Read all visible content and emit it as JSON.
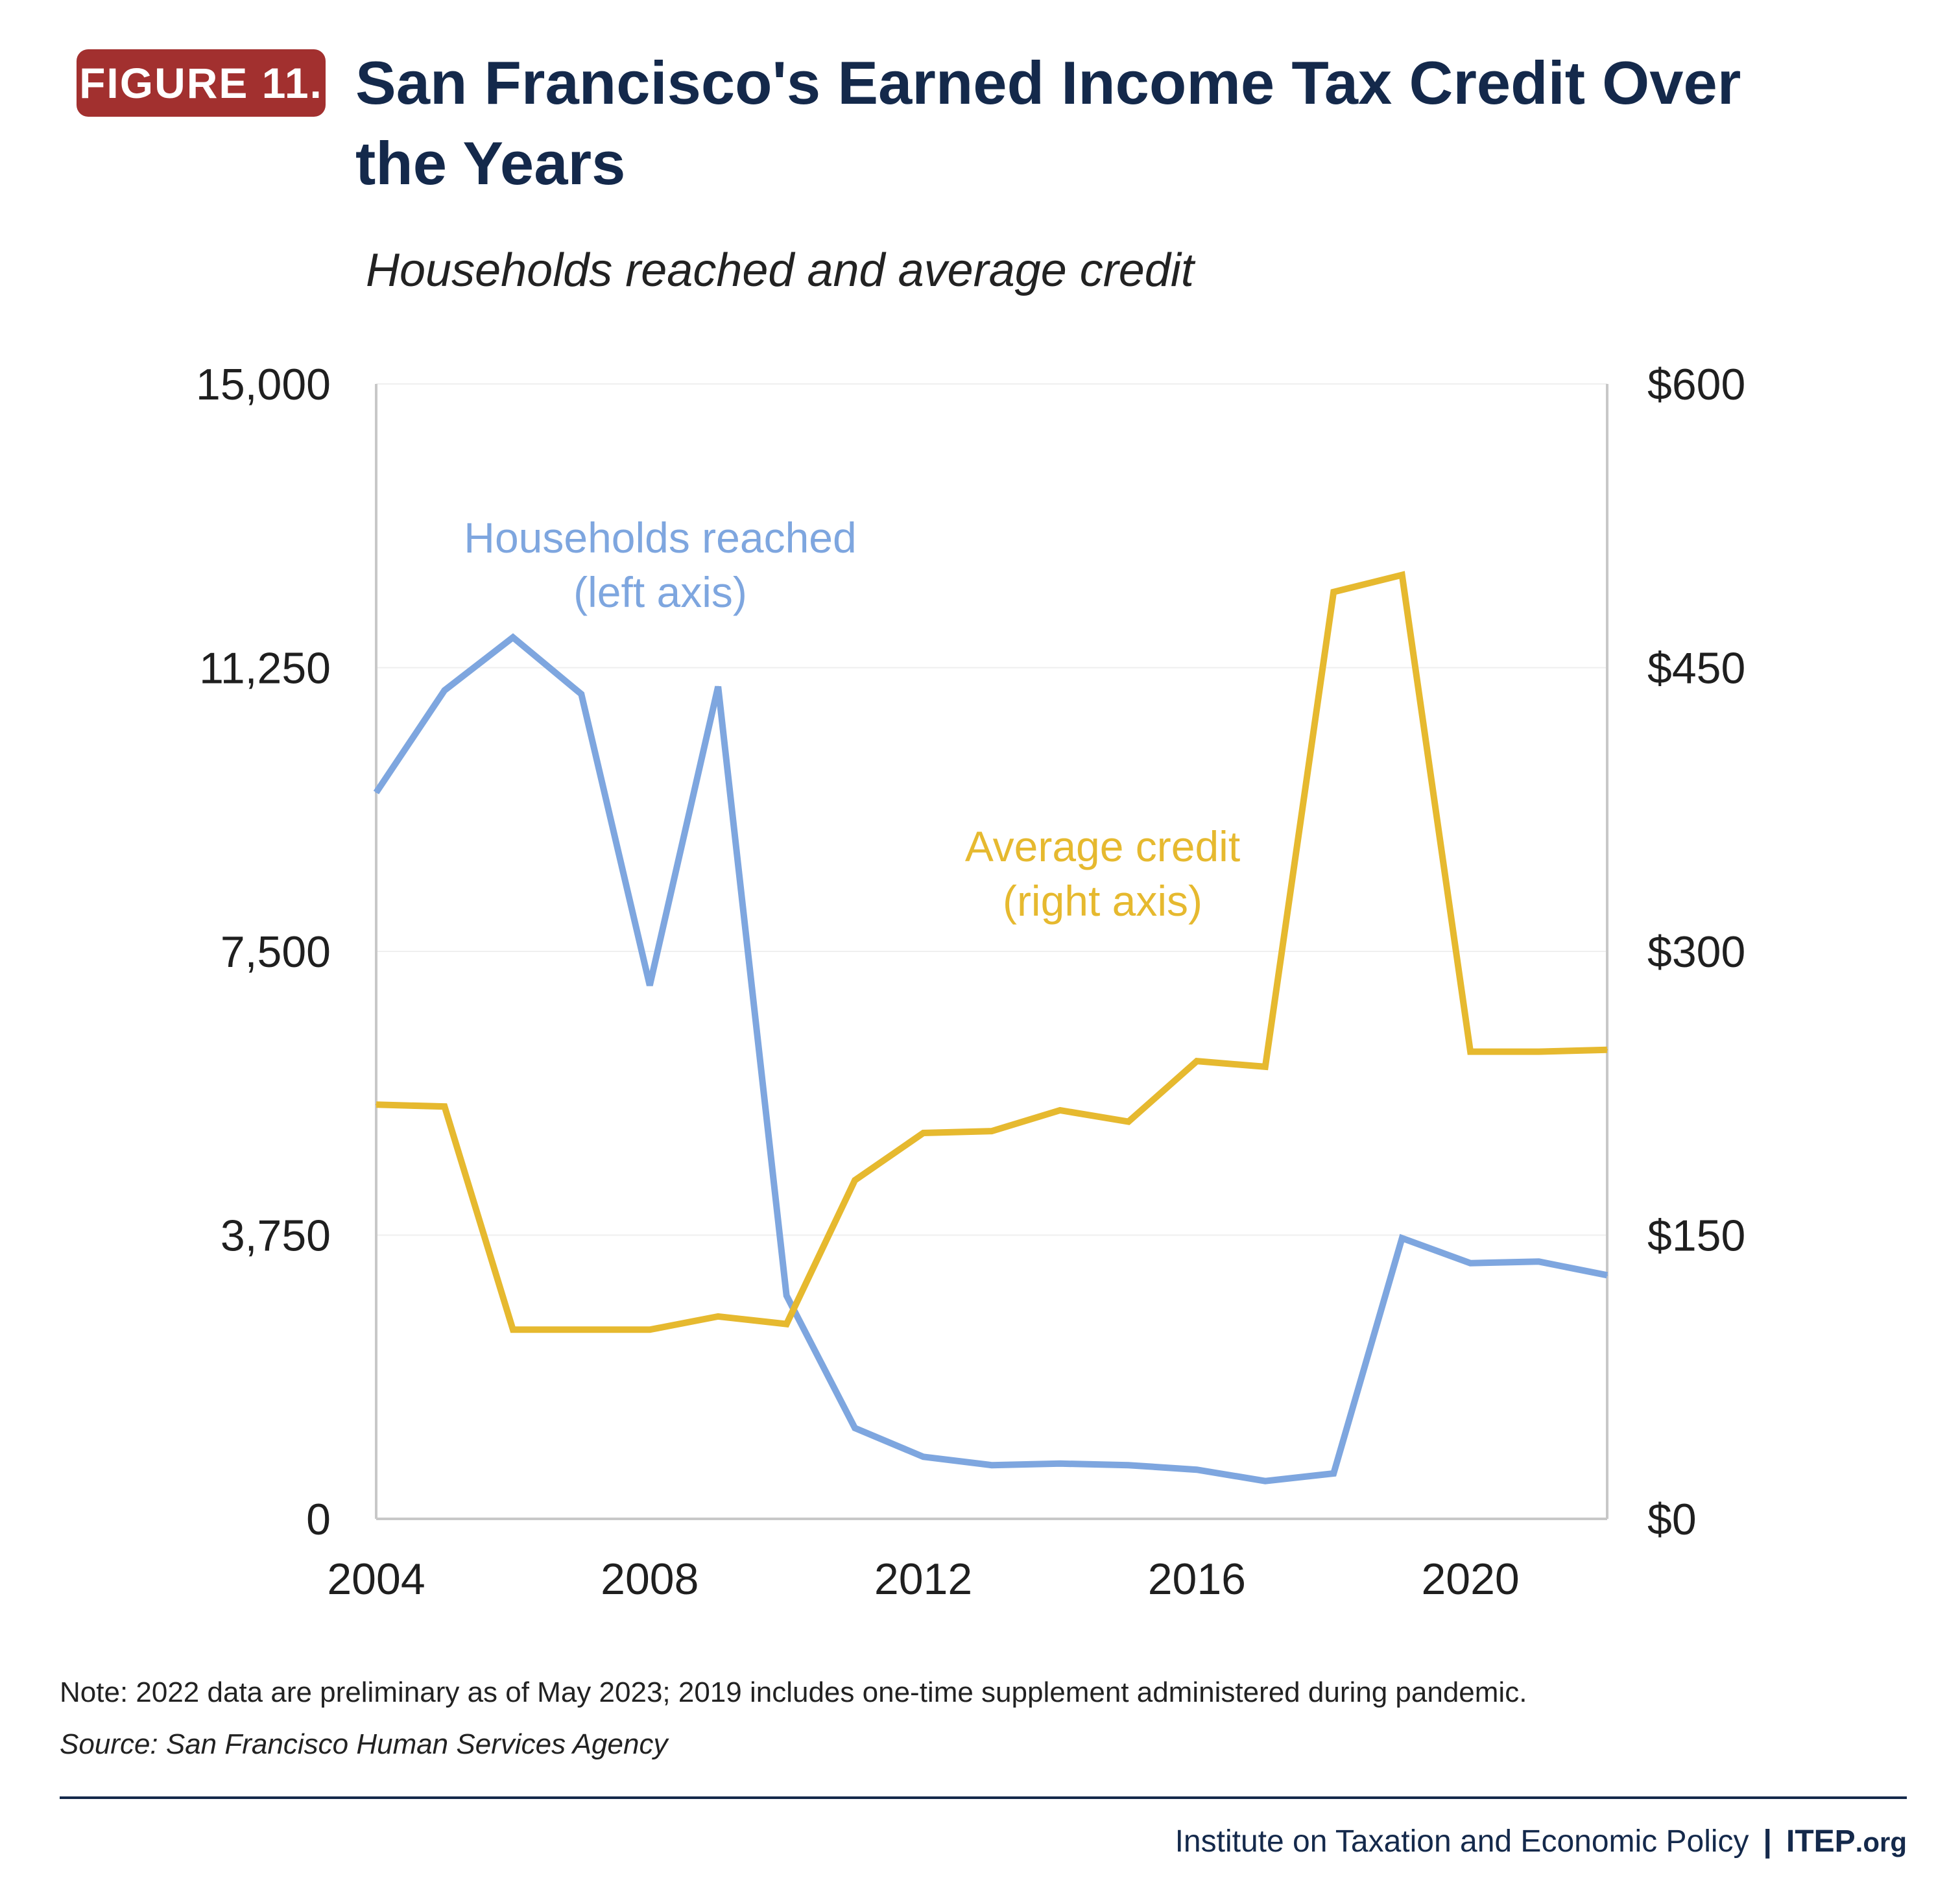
{
  "header": {
    "badge": "FIGURE 11.",
    "title": "San Francisco's Earned Income Tax Credit Over the Years",
    "subtitle": "Households reached and average credit"
  },
  "colors": {
    "badge": "#a2302f",
    "title": "#14294b",
    "households": "#7ea6df",
    "credit": "#e6b92f",
    "axis": "#c8c8c8",
    "grid": "#efefef"
  },
  "chart_data": {
    "type": "line",
    "title": "Households reached and average credit",
    "x": [
      2004,
      2005,
      2006,
      2007,
      2008,
      2009,
      2010,
      2011,
      2012,
      2013,
      2014,
      2015,
      2016,
      2017,
      2018,
      2019,
      2020,
      2021,
      2022
    ],
    "xlim": [
      2004,
      2022
    ],
    "xticks": [
      2004,
      2008,
      2012,
      2016,
      2020
    ],
    "xtick_labels": [
      "2004",
      "2008",
      "2012",
      "2016",
      "2020"
    ],
    "y_left": {
      "ylim": [
        0,
        15000
      ],
      "ticks": [
        0,
        3750,
        7500,
        11250,
        15000
      ],
      "tick_labels": [
        "0",
        "3,750",
        "7,500",
        "11,250",
        "15,000"
      ]
    },
    "y_right": {
      "ylim": [
        0,
        600
      ],
      "ticks": [
        0,
        150,
        300,
        450,
        600
      ],
      "tick_labels": [
        "$0",
        "$150",
        "$300",
        "$450",
        "$600"
      ]
    },
    "grid": true,
    "series": [
      {
        "name": "Households reached",
        "axis": "left",
        "label_lines": [
          "Households reached",
          "(left axis)"
        ],
        "values": [
          9600,
          10950,
          11650,
          10900,
          7050,
          11000,
          2950,
          1200,
          820,
          710,
          730,
          710,
          650,
          500,
          600,
          3710,
          3380,
          3400,
          3220
        ]
      },
      {
        "name": "Average credit",
        "axis": "right",
        "label_lines": [
          "Average credit",
          "(right axis)"
        ],
        "values": [
          219,
          218,
          100,
          100,
          100,
          107,
          103,
          179,
          204,
          205,
          216,
          210,
          242,
          239,
          490,
          499,
          247,
          247,
          248
        ]
      }
    ]
  },
  "notes": {
    "note": "Note: 2022 data are preliminary as of May 2023; 2019 includes one-time supplement administered during pandemic.",
    "source": "Source: San Francisco Human Services Agency"
  },
  "footer": {
    "org": "Institute on Taxation and Economic Policy",
    "separator": "|",
    "brand": "ITEP",
    "brand_suffix": ".org"
  }
}
